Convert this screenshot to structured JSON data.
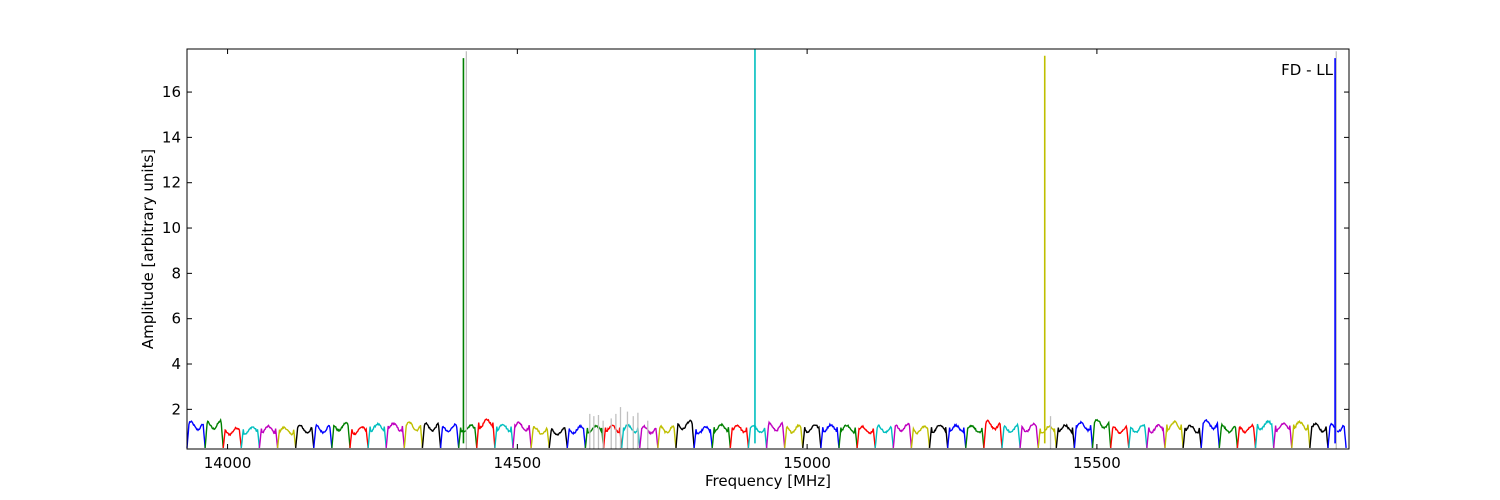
{
  "chart_data": {
    "type": "line",
    "title": "",
    "xlabel": "Frequency [MHz]",
    "ylabel": "Amplitude [arbitrary units]",
    "annotation": "FD - LL",
    "xlim": [
      13930,
      15935
    ],
    "ylim": [
      0.25,
      17.9
    ],
    "xticks": [
      14000,
      14500,
      15000,
      15500
    ],
    "yticks": [
      2,
      4,
      6,
      8,
      10,
      12,
      14,
      16
    ],
    "grid": false,
    "legend": "none",
    "subband": {
      "start": 13930,
      "width": 31.25,
      "count": 64
    },
    "colors": [
      "#0000ff",
      "#008000",
      "#ff0000",
      "#00bfbf",
      "#bf00bf",
      "#bfbf00",
      "#000000"
    ],
    "flagged_color": "#c0c0c0",
    "subband_peaks": [
      1.45,
      1.5,
      1.18,
      1.22,
      1.25,
      1.2,
      1.28,
      1.3,
      1.4,
      1.22,
      1.35,
      1.38,
      1.42,
      1.4,
      1.33,
      1.3,
      1.55,
      1.35,
      1.42,
      1.2,
      1.15,
      1.25,
      1.28,
      1.3,
      1.3,
      1.25,
      1.28,
      1.48,
      1.22,
      1.32,
      1.3,
      1.28,
      1.4,
      1.3,
      1.32,
      1.32,
      1.3,
      1.25,
      1.28,
      1.38,
      1.25,
      1.32,
      1.3,
      1.28,
      1.48,
      1.3,
      1.35,
      1.25,
      1.3,
      1.42,
      1.55,
      1.25,
      1.3,
      1.3,
      1.45,
      1.28,
      1.52,
      1.3,
      1.3,
      1.48,
      1.4,
      1.45,
      1.35,
      1.35
    ],
    "spikes": [
      {
        "x": 14407,
        "y": 17.5
      },
      {
        "x": 14910,
        "y": 17.9
      },
      {
        "x": 15410,
        "y": 17.6
      },
      {
        "x": 15911,
        "y": 17.5
      }
    ],
    "flagged_bursts": [
      {
        "x": 14625,
        "y": 1.8
      },
      {
        "x": 14632,
        "y": 1.7
      },
      {
        "x": 14640,
        "y": 1.75
      },
      {
        "x": 14648,
        "y": 1.5
      },
      {
        "x": 14662,
        "y": 1.6
      },
      {
        "x": 14670,
        "y": 1.8
      },
      {
        "x": 14678,
        "y": 2.1
      },
      {
        "x": 14690,
        "y": 1.9
      },
      {
        "x": 14700,
        "y": 1.7
      },
      {
        "x": 14708,
        "y": 1.85
      },
      {
        "x": 14725,
        "y": 1.5
      },
      {
        "x": 14412,
        "y": 17.8
      },
      {
        "x": 15420,
        "y": 1.7
      },
      {
        "x": 15913,
        "y": 17.8
      }
    ]
  }
}
